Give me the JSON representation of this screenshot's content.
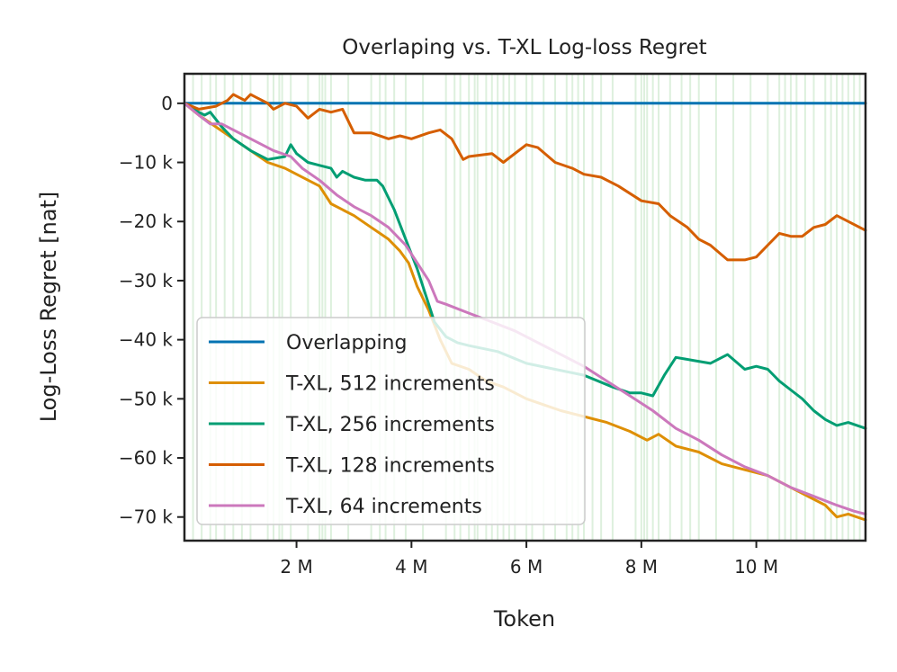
{
  "chart_data": {
    "type": "line",
    "title": "Overlaping vs. T-XL Log-loss Regret",
    "xlabel": "Token",
    "ylabel": "Log-Loss Regret [nat]",
    "xlim": [
      0.05,
      11.9
    ],
    "ylim": [
      -74,
      5
    ],
    "x_unit": "M",
    "y_unit": "k",
    "x_ticks": [
      {
        "value": 2,
        "label": "2 M"
      },
      {
        "value": 4,
        "label": "4 M"
      },
      {
        "value": 6,
        "label": "6 M"
      },
      {
        "value": 8,
        "label": "8 M"
      },
      {
        "value": 10,
        "label": "10 M"
      }
    ],
    "y_ticks": [
      {
        "value": 0,
        "label": "0"
      },
      {
        "value": -10,
        "label": "−10 k"
      },
      {
        "value": -20,
        "label": "−20 k"
      },
      {
        "value": -30,
        "label": "−30 k"
      },
      {
        "value": -40,
        "label": "−40 k"
      },
      {
        "value": -50,
        "label": "−50 k"
      },
      {
        "value": -60,
        "label": "−60 k"
      },
      {
        "value": -70,
        "label": "−70 k"
      }
    ],
    "background_markers": {
      "color": "#2ca02c",
      "x": [
        0.2,
        0.35,
        0.5,
        0.6,
        0.75,
        0.9,
        1.05,
        1.2,
        1.5,
        1.6,
        1.7,
        1.75,
        1.9,
        2.2,
        2.4,
        2.45,
        2.5,
        2.6,
        2.9,
        3.3,
        3.45,
        3.55,
        3.7,
        3.9,
        4.2,
        4.6,
        4.75,
        4.85,
        5.0,
        5.1,
        5.15,
        5.3,
        5.4,
        5.5,
        5.6,
        5.7,
        5.8,
        6.0,
        6.1,
        6.3,
        6.5,
        6.7,
        6.8,
        6.9,
        7.0,
        7.15,
        7.3,
        7.5,
        7.9,
        8.0,
        8.05,
        8.1,
        8.2,
        8.3,
        8.5,
        8.7,
        8.85,
        9.0,
        9.3,
        9.6,
        9.9,
        10.2,
        10.4,
        10.5,
        10.6,
        10.7,
        10.85,
        11.0,
        11.2,
        11.3,
        11.4,
        11.5,
        11.6,
        11.7,
        11.8
      ]
    },
    "legend": {
      "position": "lower-left"
    },
    "series": [
      {
        "name": "Overlapping",
        "color": "#0173b2",
        "x": [
          0.05,
          11.9
        ],
        "y": [
          0,
          0
        ]
      },
      {
        "name": "T-XL, 512 increments",
        "color": "#de8f05",
        "x": [
          0.05,
          0.3,
          0.6,
          0.9,
          1.2,
          1.5,
          1.8,
          2.0,
          2.4,
          2.6,
          2.8,
          3.0,
          3.3,
          3.6,
          3.8,
          3.95,
          4.1,
          4.3,
          4.5,
          4.7,
          5.0,
          5.3,
          5.6,
          6.0,
          6.3,
          6.6,
          7.0,
          7.4,
          7.8,
          8.1,
          8.3,
          8.6,
          9.0,
          9.4,
          9.8,
          10.2,
          10.6,
          11.0,
          11.2,
          11.4,
          11.6,
          11.9
        ],
        "y": [
          0,
          -2,
          -4,
          -6,
          -8,
          -10,
          -11,
          -12,
          -14,
          -17,
          -18,
          -19,
          -21,
          -23,
          -25,
          -27,
          -31,
          -35,
          -40,
          -44,
          -45,
          -47,
          -48,
          -50,
          -51,
          -52,
          -53,
          -54,
          -55.5,
          -57,
          -56,
          -58,
          -59,
          -61,
          -62,
          -63,
          -65,
          -67,
          -68,
          -70,
          -69.5,
          -70.5
        ]
      },
      {
        "name": "T-XL, 256 increments",
        "color": "#029e73",
        "x": [
          0.05,
          0.2,
          0.4,
          0.5,
          0.7,
          0.9,
          1.2,
          1.5,
          1.8,
          1.9,
          2.0,
          2.2,
          2.4,
          2.6,
          2.7,
          2.8,
          3.0,
          3.2,
          3.4,
          3.5,
          3.7,
          3.9,
          4.1,
          4.3,
          4.4,
          4.6,
          4.8,
          5.0,
          5.5,
          6.0,
          6.5,
          7.0,
          7.5,
          7.8,
          8.0,
          8.2,
          8.4,
          8.6,
          8.9,
          9.2,
          9.5,
          9.8,
          10.0,
          10.2,
          10.4,
          10.6,
          10.8,
          11.0,
          11.2,
          11.4,
          11.6,
          11.9
        ],
        "y": [
          0,
          -1,
          -2,
          -1.5,
          -4,
          -6,
          -8,
          -9.5,
          -9,
          -7,
          -8.5,
          -10,
          -10.5,
          -11,
          -12.5,
          -11.5,
          -12.5,
          -13,
          -13,
          -14,
          -18,
          -23,
          -28,
          -34,
          -37,
          -39.5,
          -40.5,
          -41,
          -42,
          -44,
          -45,
          -46,
          -48,
          -49,
          -49,
          -49.5,
          -46,
          -43,
          -43.5,
          -44,
          -42.5,
          -45,
          -44.5,
          -45,
          -47,
          -48.5,
          -50,
          -52,
          -53.5,
          -54.5,
          -54,
          -55
        ]
      },
      {
        "name": "T-XL, 128 increments",
        "color": "#d55e00",
        "x": [
          0.05,
          0.3,
          0.6,
          0.8,
          0.9,
          1.0,
          1.1,
          1.2,
          1.3,
          1.5,
          1.6,
          1.8,
          2.0,
          2.2,
          2.4,
          2.6,
          2.8,
          3.0,
          3.3,
          3.6,
          3.8,
          4.0,
          4.3,
          4.5,
          4.7,
          4.9,
          5.0,
          5.4,
          5.6,
          6.0,
          6.2,
          6.5,
          6.8,
          7.0,
          7.3,
          7.6,
          8.0,
          8.3,
          8.5,
          8.8,
          9.0,
          9.2,
          9.5,
          9.8,
          10.0,
          10.2,
          10.4,
          10.6,
          10.8,
          11.0,
          11.2,
          11.4,
          11.6,
          11.9
        ],
        "y": [
          0,
          -1,
          -0.5,
          0.5,
          1.5,
          1,
          0.5,
          1.5,
          1,
          0,
          -1,
          0,
          -0.5,
          -2.5,
          -1,
          -1.5,
          -1,
          -5,
          -5,
          -6,
          -5.5,
          -6,
          -5,
          -4.5,
          -6,
          -9.5,
          -9,
          -8.5,
          -10,
          -7,
          -7.5,
          -10,
          -11,
          -12,
          -12.5,
          -14,
          -16.5,
          -17,
          -19,
          -21,
          -23,
          -24,
          -26.5,
          -26.5,
          -26,
          -24,
          -22,
          -22.5,
          -22.5,
          -21,
          -20.5,
          -19,
          -20,
          -21.5
        ]
      },
      {
        "name": "T-XL, 64 increments",
        "color": "#cc78bc",
        "x": [
          0.05,
          0.3,
          0.5,
          0.7,
          1.0,
          1.3,
          1.6,
          1.9,
          2.1,
          2.4,
          2.7,
          3.0,
          3.3,
          3.6,
          3.9,
          4.1,
          4.3,
          4.45,
          4.6,
          5.0,
          5.4,
          5.8,
          6.2,
          6.6,
          7.0,
          7.4,
          7.8,
          8.2,
          8.6,
          9.0,
          9.4,
          9.8,
          10.2,
          10.6,
          11.0,
          11.4,
          11.7,
          11.9
        ],
        "y": [
          0,
          -2,
          -3.5,
          -3.5,
          -5,
          -6.5,
          -8,
          -9,
          -11,
          -13,
          -15.5,
          -17.5,
          -19,
          -21,
          -24,
          -27,
          -30,
          -33.5,
          -34,
          -35.5,
          -37,
          -38.5,
          -40.5,
          -42.5,
          -44.5,
          -47,
          -49.5,
          -52,
          -55,
          -57,
          -59.5,
          -61.5,
          -63,
          -65,
          -66.5,
          -68,
          -69,
          -69.5
        ]
      }
    ]
  }
}
